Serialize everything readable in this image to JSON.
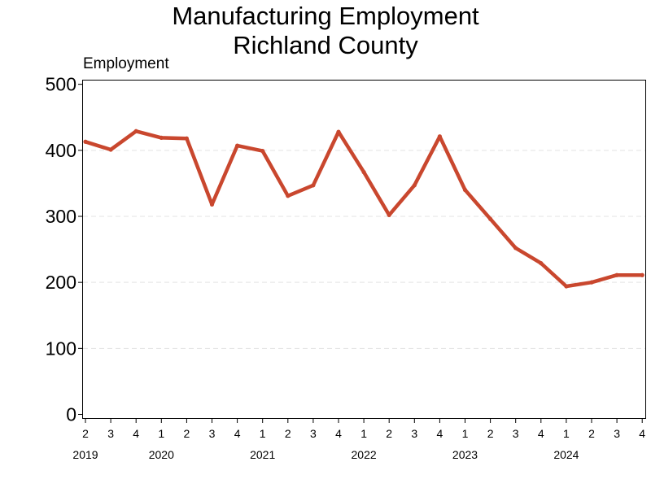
{
  "chart_data": {
    "type": "line",
    "title": "Manufacturing Employment",
    "subtitle": "Richland County",
    "xlabel": "",
    "ylabel": "Employment",
    "ylim": [
      0,
      500
    ],
    "yticks": [
      0,
      100,
      200,
      300,
      400,
      500
    ],
    "grid": "horizontal-dashed",
    "line_color": "#c9472e",
    "x": [
      {
        "year": 2019,
        "quarter": 2
      },
      {
        "year": 2019,
        "quarter": 3
      },
      {
        "year": 2019,
        "quarter": 4
      },
      {
        "year": 2020,
        "quarter": 1
      },
      {
        "year": 2020,
        "quarter": 2
      },
      {
        "year": 2020,
        "quarter": 3
      },
      {
        "year": 2020,
        "quarter": 4
      },
      {
        "year": 2021,
        "quarter": 1
      },
      {
        "year": 2021,
        "quarter": 2
      },
      {
        "year": 2021,
        "quarter": 3
      },
      {
        "year": 2021,
        "quarter": 4
      },
      {
        "year": 2022,
        "quarter": 1
      },
      {
        "year": 2022,
        "quarter": 2
      },
      {
        "year": 2022,
        "quarter": 3
      },
      {
        "year": 2022,
        "quarter": 4
      },
      {
        "year": 2023,
        "quarter": 1
      },
      {
        "year": 2023,
        "quarter": 2
      },
      {
        "year": 2023,
        "quarter": 3
      },
      {
        "year": 2023,
        "quarter": 4
      },
      {
        "year": 2024,
        "quarter": 1
      },
      {
        "year": 2024,
        "quarter": 2
      },
      {
        "year": 2024,
        "quarter": 3
      },
      {
        "year": 2024,
        "quarter": 4
      }
    ],
    "series": [
      {
        "values": [
          413,
          401,
          429,
          419,
          418,
          318,
          407,
          399,
          331,
          347,
          428,
          367,
          302,
          347,
          421,
          340,
          296,
          252,
          229,
          194,
          200,
          211,
          211
        ]
      }
    ]
  }
}
